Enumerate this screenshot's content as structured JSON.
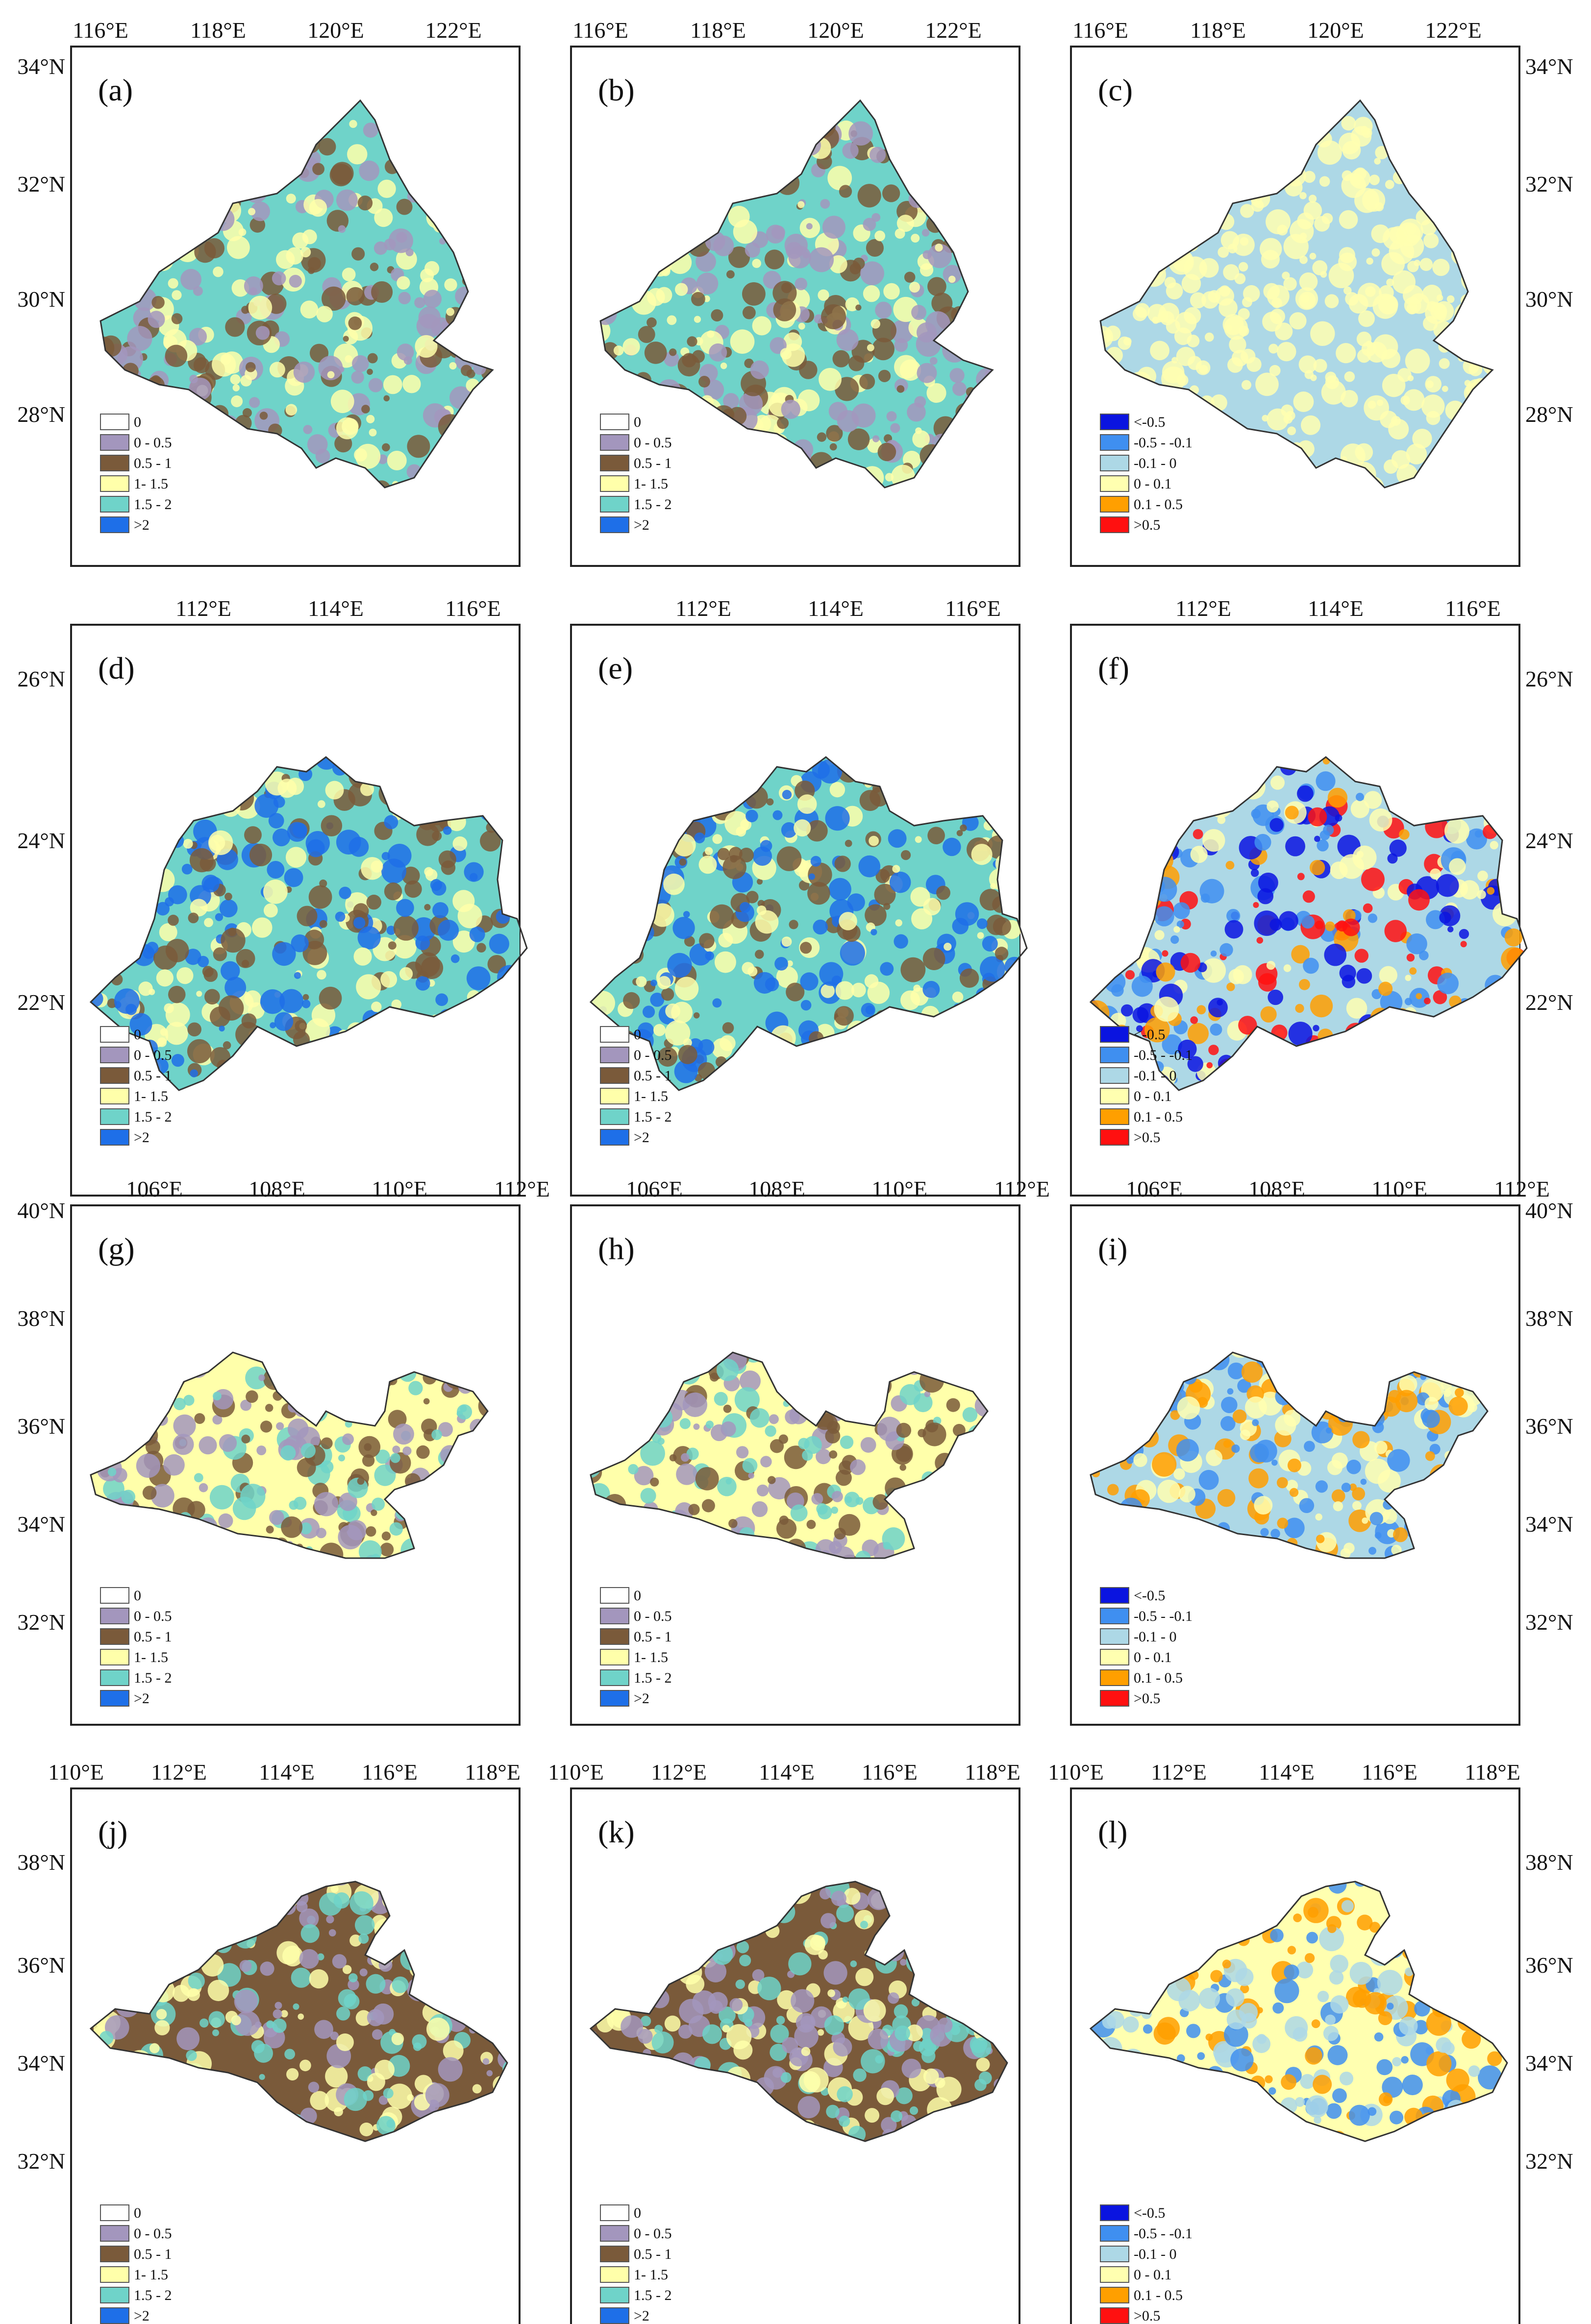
{
  "colors": {
    "diverging": [
      "#0a14e0",
      "#3f8ff0",
      "#add8e6",
      "#ffffb0",
      "#ff9f00",
      "#ff1010"
    ],
    "magnitude": [
      "#ffffff",
      "#a396bd",
      "#7a5a3a",
      "#ffffaa",
      "#6fd3c9",
      "#1e6fe8"
    ],
    "frame": "#222222"
  },
  "legends": {
    "magnitude": [
      "0",
      "0 - 0.5",
      "0.5 - 1",
      "1- 1.5",
      "1.5 - 2",
      ">2"
    ],
    "diverging": [
      "<-0.5",
      "-0.5 - -0.1",
      "-0.1 - 0",
      "0 - 0.1",
      "0.1 - 0.5",
      ">0.5"
    ]
  },
  "rows": [
    {
      "lon_labels": [
        "116°E",
        "118°E",
        "120°E",
        "122°E"
      ],
      "lat_labels": [
        "34°N",
        "32°N",
        "30°N",
        "28°N"
      ],
      "panels": [
        {
          "tag": "(a)",
          "legend": "magnitude",
          "dominant": [
            4,
            1,
            2,
            3
          ]
        },
        {
          "tag": "(b)",
          "legend": "magnitude",
          "dominant": [
            4,
            1,
            2,
            3
          ]
        },
        {
          "tag": "(c)",
          "legend": "diverging",
          "dominant": [
            2,
            3
          ]
        }
      ]
    },
    {
      "lon_labels": [
        "112°E",
        "114°E",
        "116°E"
      ],
      "lat_labels": [
        "26°N",
        "24°N",
        "22°N"
      ],
      "panels": [
        {
          "tag": "(d)",
          "legend": "magnitude",
          "dominant": [
            4,
            5,
            3,
            2
          ]
        },
        {
          "tag": "(e)",
          "legend": "magnitude",
          "dominant": [
            4,
            5,
            3,
            2
          ]
        },
        {
          "tag": "(f)",
          "legend": "diverging",
          "dominant": [
            2,
            0,
            1,
            3,
            4,
            5
          ]
        }
      ]
    },
    {
      "lon_labels": [
        "106°E",
        "108°E",
        "110°E",
        "112°E"
      ],
      "lat_labels": [
        "40°N",
        "38°N",
        "36°N",
        "34°N",
        "32°N"
      ],
      "panels": [
        {
          "tag": "(g)",
          "legend": "magnitude",
          "dominant": [
            3,
            2,
            1,
            4
          ]
        },
        {
          "tag": "(h)",
          "legend": "magnitude",
          "dominant": [
            3,
            2,
            1,
            4
          ]
        },
        {
          "tag": "(i)",
          "legend": "diverging",
          "dominant": [
            2,
            3,
            4,
            1
          ]
        }
      ]
    },
    {
      "lon_labels": [
        "110°E",
        "112°E",
        "114°E",
        "116°E",
        "118°E"
      ],
      "lat_labels": [
        "38°N",
        "36°N",
        "34°N",
        "32°N"
      ],
      "panels": [
        {
          "tag": "(j)",
          "legend": "magnitude",
          "dominant": [
            2,
            3,
            1,
            4
          ]
        },
        {
          "tag": "(k)",
          "legend": "magnitude",
          "dominant": [
            2,
            3,
            1,
            4
          ]
        },
        {
          "tag": "(l)",
          "legend": "diverging",
          "dominant": [
            3,
            2,
            4,
            1
          ]
        }
      ]
    }
  ]
}
